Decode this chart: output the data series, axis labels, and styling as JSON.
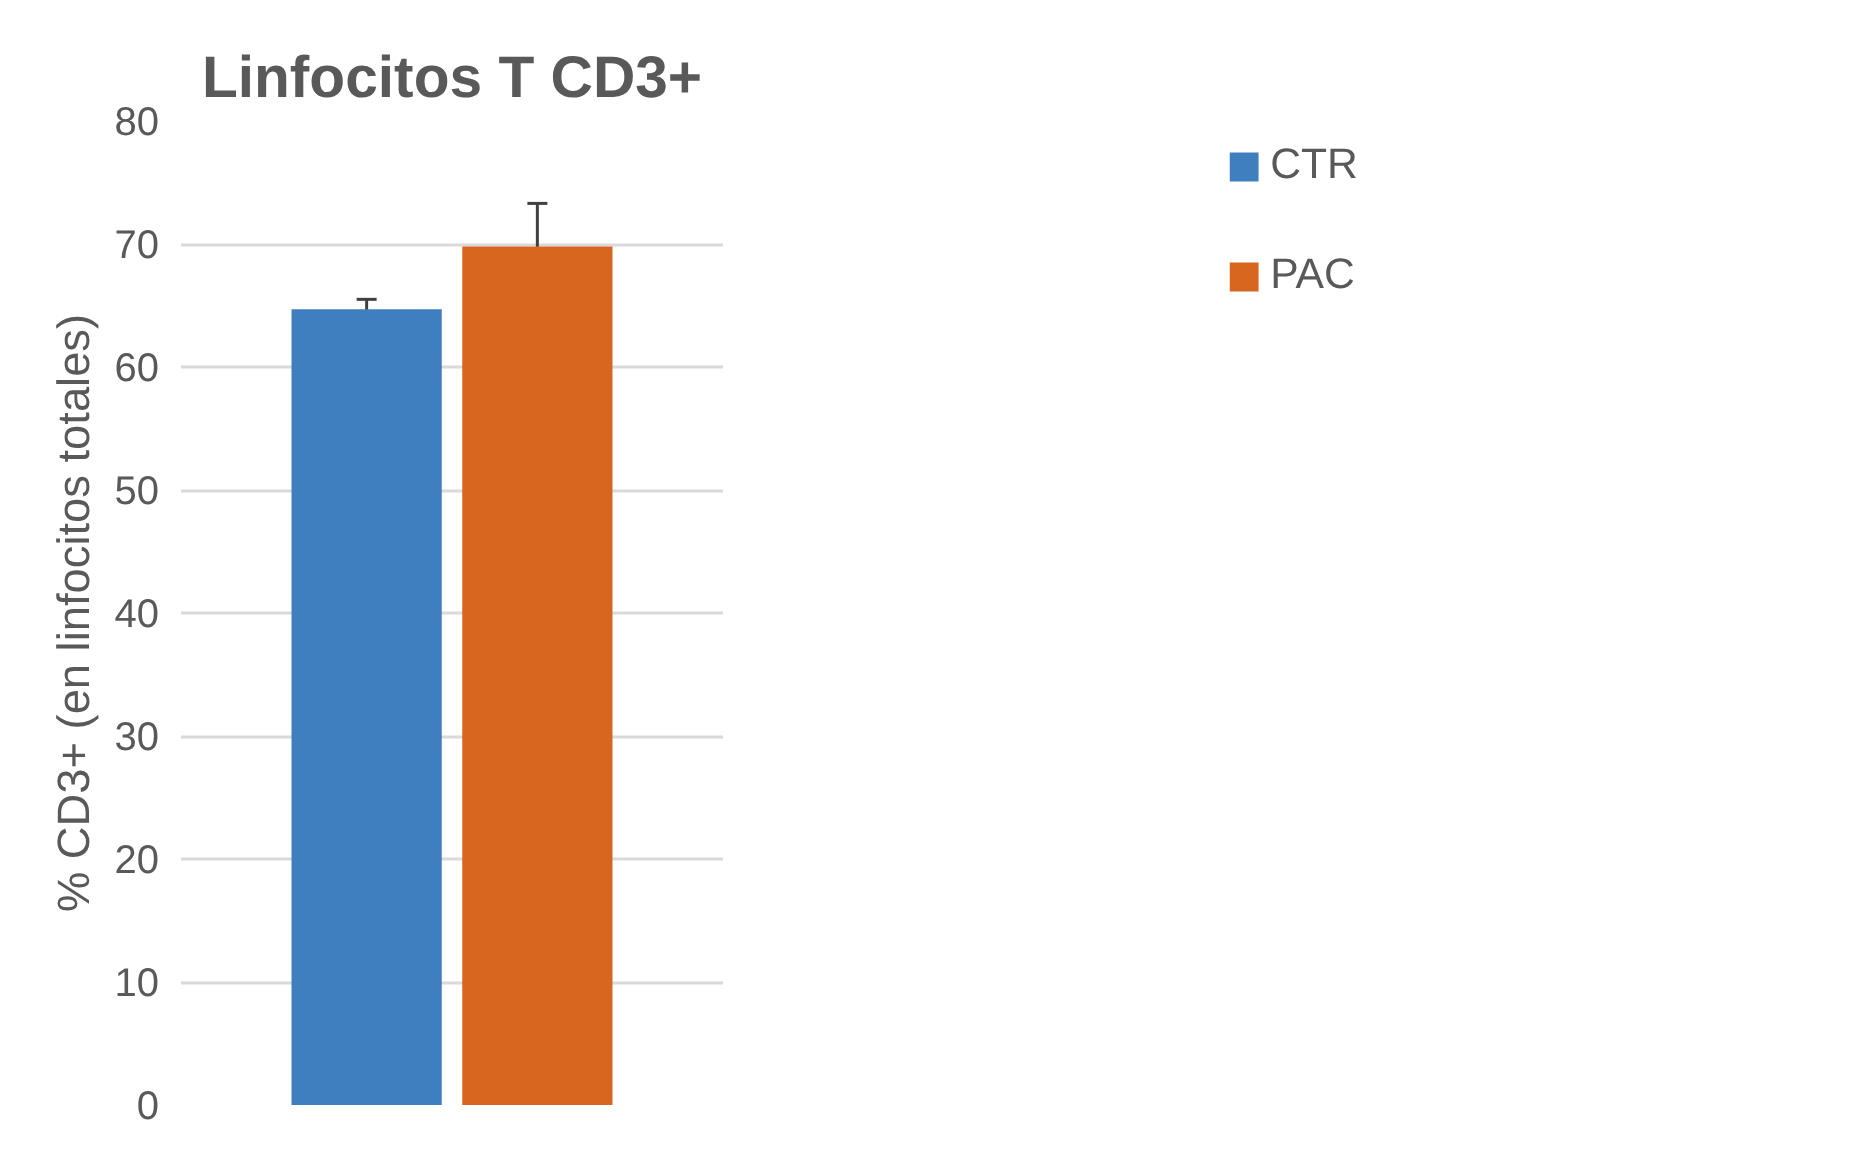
{
  "chart_data": {
    "type": "bar",
    "title": "Linfocitos T CD3+",
    "ylabel": "% CD3+ (en linfocitos totales)",
    "categories": [
      null
    ],
    "series": [
      {
        "name": "CTR",
        "color": "#3f7fc0",
        "values": [
          64.7
        ],
        "errors": [
          0.8
        ]
      },
      {
        "name": "PAC",
        "color": "#d8661e",
        "values": [
          69.8
        ],
        "errors": [
          3.5
        ]
      }
    ],
    "ylim": [
      0,
      80
    ],
    "yticks": [
      0,
      10,
      20,
      30,
      40,
      50,
      60,
      70,
      80
    ],
    "grid": "y",
    "legend": "top right"
  }
}
